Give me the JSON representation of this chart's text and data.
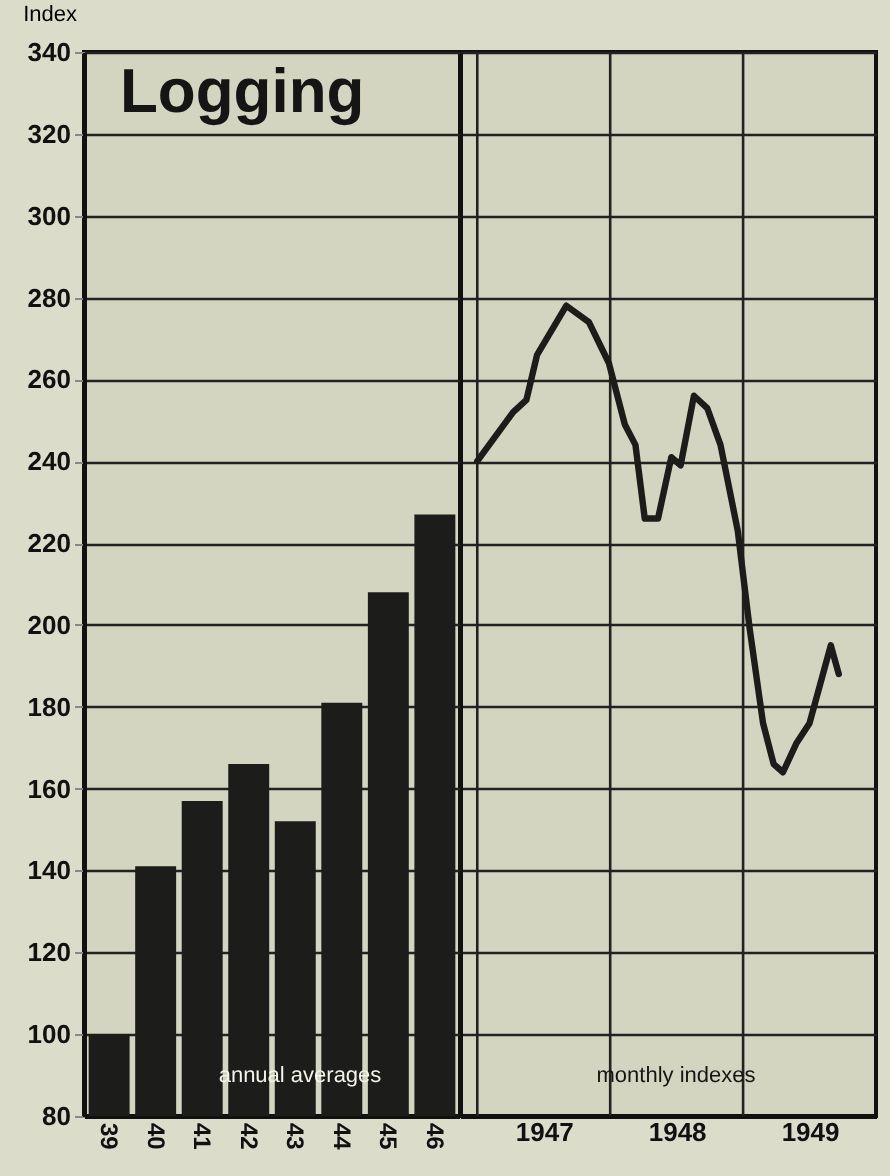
{
  "chart_data": [
    {
      "type": "bar",
      "title": "Logging",
      "ylabel": "Index",
      "categories": [
        "39",
        "40",
        "41",
        "42",
        "43",
        "44",
        "45",
        "46"
      ],
      "values": [
        100,
        141,
        157,
        166,
        152,
        181,
        208,
        227
      ],
      "color": "#1c1c1a",
      "ylim": [
        80,
        340
      ],
      "yticks": [
        80,
        100,
        120,
        140,
        160,
        180,
        200,
        220,
        240,
        260,
        280,
        300,
        320,
        340
      ],
      "grid": "y",
      "annotations": [
        "annual averages"
      ]
    },
    {
      "type": "line",
      "x": [
        1947.0,
        1947.27,
        1947.37,
        1947.45,
        1947.67,
        1947.84,
        1947.99,
        1948.11,
        1948.19,
        1948.26,
        1948.36,
        1948.46,
        1948.53,
        1948.63,
        1948.73,
        1948.83,
        1948.96,
        1949.05,
        1949.15,
        1949.23,
        1949.3,
        1949.4,
        1949.5,
        1949.66,
        1949.72
      ],
      "values": [
        240,
        252,
        255,
        266,
        278,
        274,
        264,
        249,
        244,
        226,
        226,
        241,
        239,
        256,
        253,
        244,
        223,
        199,
        176,
        166,
        164,
        171,
        176,
        195,
        188
      ],
      "color": "#1c1c1a",
      "xlim": [
        1946.87,
        1950
      ],
      "xticks": [
        {
          "value": 1947,
          "label": null
        },
        {
          "value": 1947.5,
          "label": "1947"
        },
        {
          "value": 1948,
          "label": null
        },
        {
          "value": 1948.5,
          "label": "1948"
        },
        {
          "value": 1949,
          "label": null
        },
        {
          "value": 1949.5,
          "label": "1949"
        }
      ],
      "ylim": [
        80,
        340
      ],
      "yticks": [
        80,
        100,
        120,
        140,
        160,
        180,
        200,
        220,
        240,
        260,
        280,
        300,
        320,
        340
      ],
      "grid": true,
      "tick_labels": "x",
      "line_style": "solid",
      "annotations": [
        "monthly indexes"
      ]
    }
  ]
}
